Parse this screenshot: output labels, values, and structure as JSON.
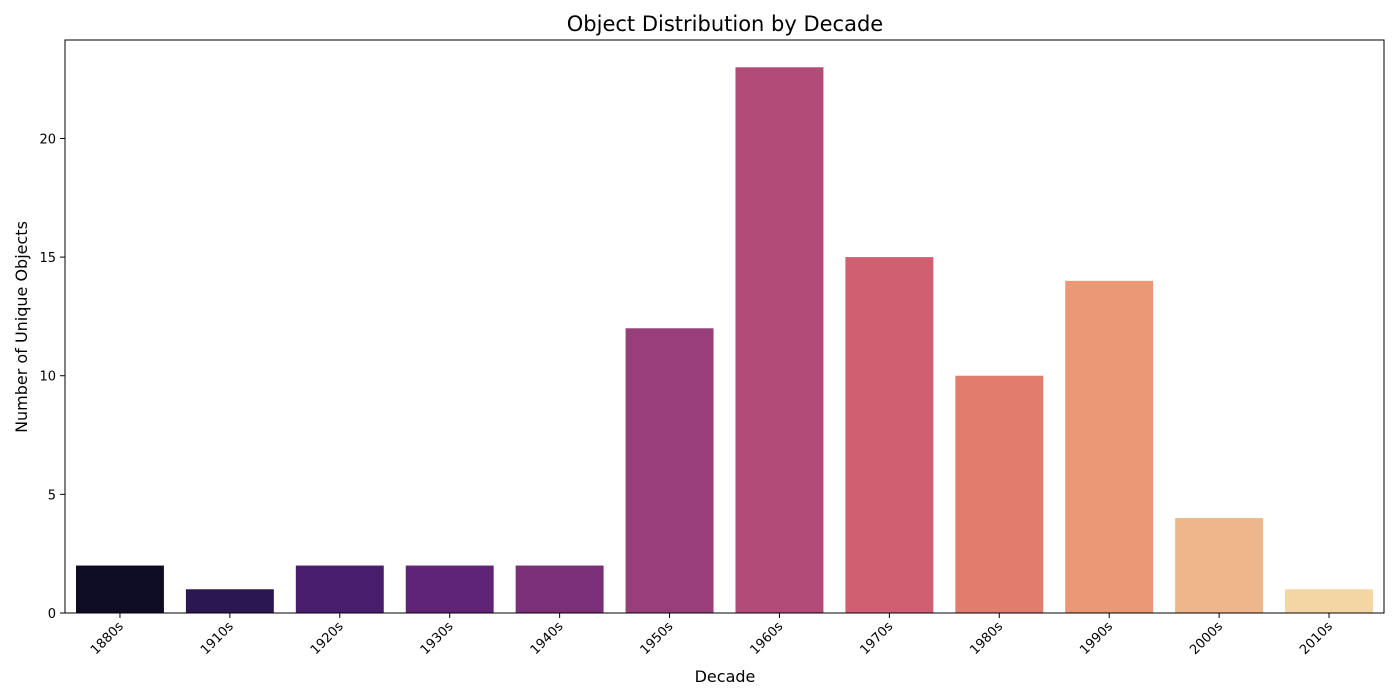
{
  "chart_data": {
    "type": "bar",
    "title": "Object Distribution by Decade",
    "xlabel": "Decade",
    "ylabel": "Number of Unique Objects",
    "categories": [
      "1880s",
      "1910s",
      "1920s",
      "1930s",
      "1940s",
      "1950s",
      "1960s",
      "1970s",
      "1980s",
      "1990s",
      "2000s",
      "2010s"
    ],
    "values": [
      2,
      1,
      2,
      2,
      2,
      12,
      23,
      15,
      10,
      14,
      4,
      1
    ],
    "colors": [
      "#0e0b24",
      "#2b1853",
      "#481d6e",
      "#5f2475",
      "#7a3079",
      "#983e7b",
      "#b34b78",
      "#d05f71",
      "#e27d6e",
      "#eb9876",
      "#eeb68b",
      "#f3d6a4"
    ],
    "ylim": [
      0,
      24.15
    ],
    "yticks": [
      0,
      5,
      10,
      15,
      20
    ],
    "grid": false,
    "legend": "none"
  }
}
